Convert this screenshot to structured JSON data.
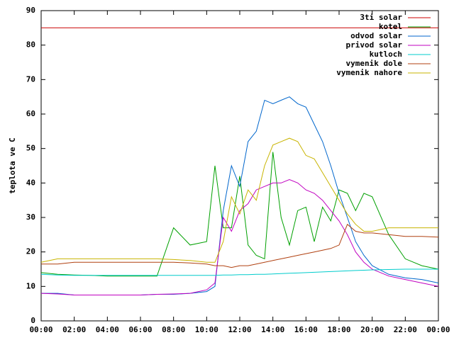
{
  "chart_data": {
    "type": "line",
    "y_label": "teplota ve C",
    "x": [
      0,
      1,
      2,
      3,
      4,
      5,
      6,
      7,
      8,
      9,
      10,
      10.5,
      11,
      11.5,
      12,
      12.5,
      13,
      13.5,
      14,
      14.5,
      15,
      15.5,
      16,
      16.5,
      17,
      17.5,
      18,
      18.5,
      19,
      19.5,
      20,
      21,
      22,
      23,
      24
    ],
    "xlim": [
      0,
      24
    ],
    "xticks": [
      {
        "value": 0,
        "label": "00:00"
      },
      {
        "value": 2,
        "label": "02:00"
      },
      {
        "value": 4,
        "label": "04:00"
      },
      {
        "value": 6,
        "label": "06:00"
      },
      {
        "value": 8,
        "label": "08:00"
      },
      {
        "value": 10,
        "label": "10:00"
      },
      {
        "value": 12,
        "label": "12:00"
      },
      {
        "value": 14,
        "label": "14:00"
      },
      {
        "value": 16,
        "label": "16:00"
      },
      {
        "value": 18,
        "label": "18:00"
      },
      {
        "value": 20,
        "label": "20:00"
      },
      {
        "value": 22,
        "label": "22:00"
      },
      {
        "value": 24,
        "label": "00:00"
      }
    ],
    "ylim": [
      0,
      90
    ],
    "yticks": [
      0,
      10,
      20,
      30,
      40,
      50,
      60,
      70,
      80,
      90
    ],
    "grid": false,
    "legend": "top-right",
    "series": [
      {
        "name": "3ti solar",
        "color": "#cc0000",
        "values": [
          85,
          85,
          85,
          85,
          85,
          85,
          85,
          85,
          85,
          85,
          85,
          85,
          85,
          85,
          85,
          85,
          85,
          85,
          85,
          85,
          85,
          85,
          85,
          85,
          85,
          85,
          85,
          85,
          85,
          85,
          85,
          85,
          85,
          85,
          85
        ]
      },
      {
        "name": "kotel",
        "color": "#00a000",
        "values": [
          14,
          13.5,
          13.3,
          13.2,
          13,
          13,
          13,
          13,
          27,
          22,
          23,
          45,
          27,
          27,
          42,
          22,
          19,
          18,
          49,
          30,
          22,
          32,
          33,
          23,
          33,
          29,
          38,
          37,
          32,
          37,
          36,
          25,
          18,
          16,
          15
        ]
      },
      {
        "name": "odvod solar",
        "color": "#0066cc",
        "values": [
          8,
          8,
          7.5,
          7.5,
          7.5,
          7.5,
          7.5,
          7.7,
          7.7,
          8,
          8.5,
          10,
          32,
          45,
          39,
          52,
          55,
          64,
          63,
          64,
          65,
          63,
          62,
          57,
          52,
          45,
          37,
          30,
          23,
          19,
          16,
          13.5,
          12.5,
          12,
          11
        ]
      },
      {
        "name": "privod solar",
        "color": "#c000c0",
        "values": [
          8,
          7.8,
          7.5,
          7.5,
          7.5,
          7.5,
          7.5,
          7.7,
          7.8,
          8,
          9,
          11,
          30,
          26,
          32,
          34,
          38,
          39,
          40,
          40,
          41,
          40,
          38,
          37,
          35,
          32,
          29,
          25,
          20,
          17,
          15,
          13,
          12,
          11,
          10
        ]
      },
      {
        "name": "kutloch",
        "color": "#00cccc",
        "values": [
          13.5,
          13.3,
          13.2,
          13.2,
          13.2,
          13.2,
          13.2,
          13.2,
          13.2,
          13.2,
          13.2,
          13.2,
          13.3,
          13.3,
          13.4,
          13.4,
          13.5,
          13.5,
          13.6,
          13.7,
          13.8,
          13.9,
          14,
          14.1,
          14.2,
          14.3,
          14.4,
          14.5,
          14.6,
          14.7,
          14.8,
          14.9,
          15,
          15,
          15
        ]
      },
      {
        "name": "vymenik dole",
        "color": "#b04010",
        "values": [
          16.5,
          16.5,
          17,
          17,
          17,
          17,
          17,
          17,
          17,
          16.8,
          16.5,
          16,
          16,
          15.5,
          16,
          16,
          16.5,
          17,
          17.5,
          18,
          18.5,
          19,
          19.5,
          20,
          20.5,
          21,
          22,
          28,
          26,
          25.5,
          25.5,
          25,
          24.5,
          24.5,
          24.3
        ]
      },
      {
        "name": "vymenik nahore",
        "color": "#c8b400",
        "values": [
          17,
          18,
          18,
          18,
          18,
          18,
          18,
          18,
          17.8,
          17.5,
          17,
          17,
          23,
          36,
          31,
          38,
          35,
          45,
          51,
          52,
          53,
          52,
          48,
          47,
          43,
          39,
          35,
          31,
          28,
          26,
          26,
          27,
          27,
          27,
          27
        ]
      }
    ]
  }
}
